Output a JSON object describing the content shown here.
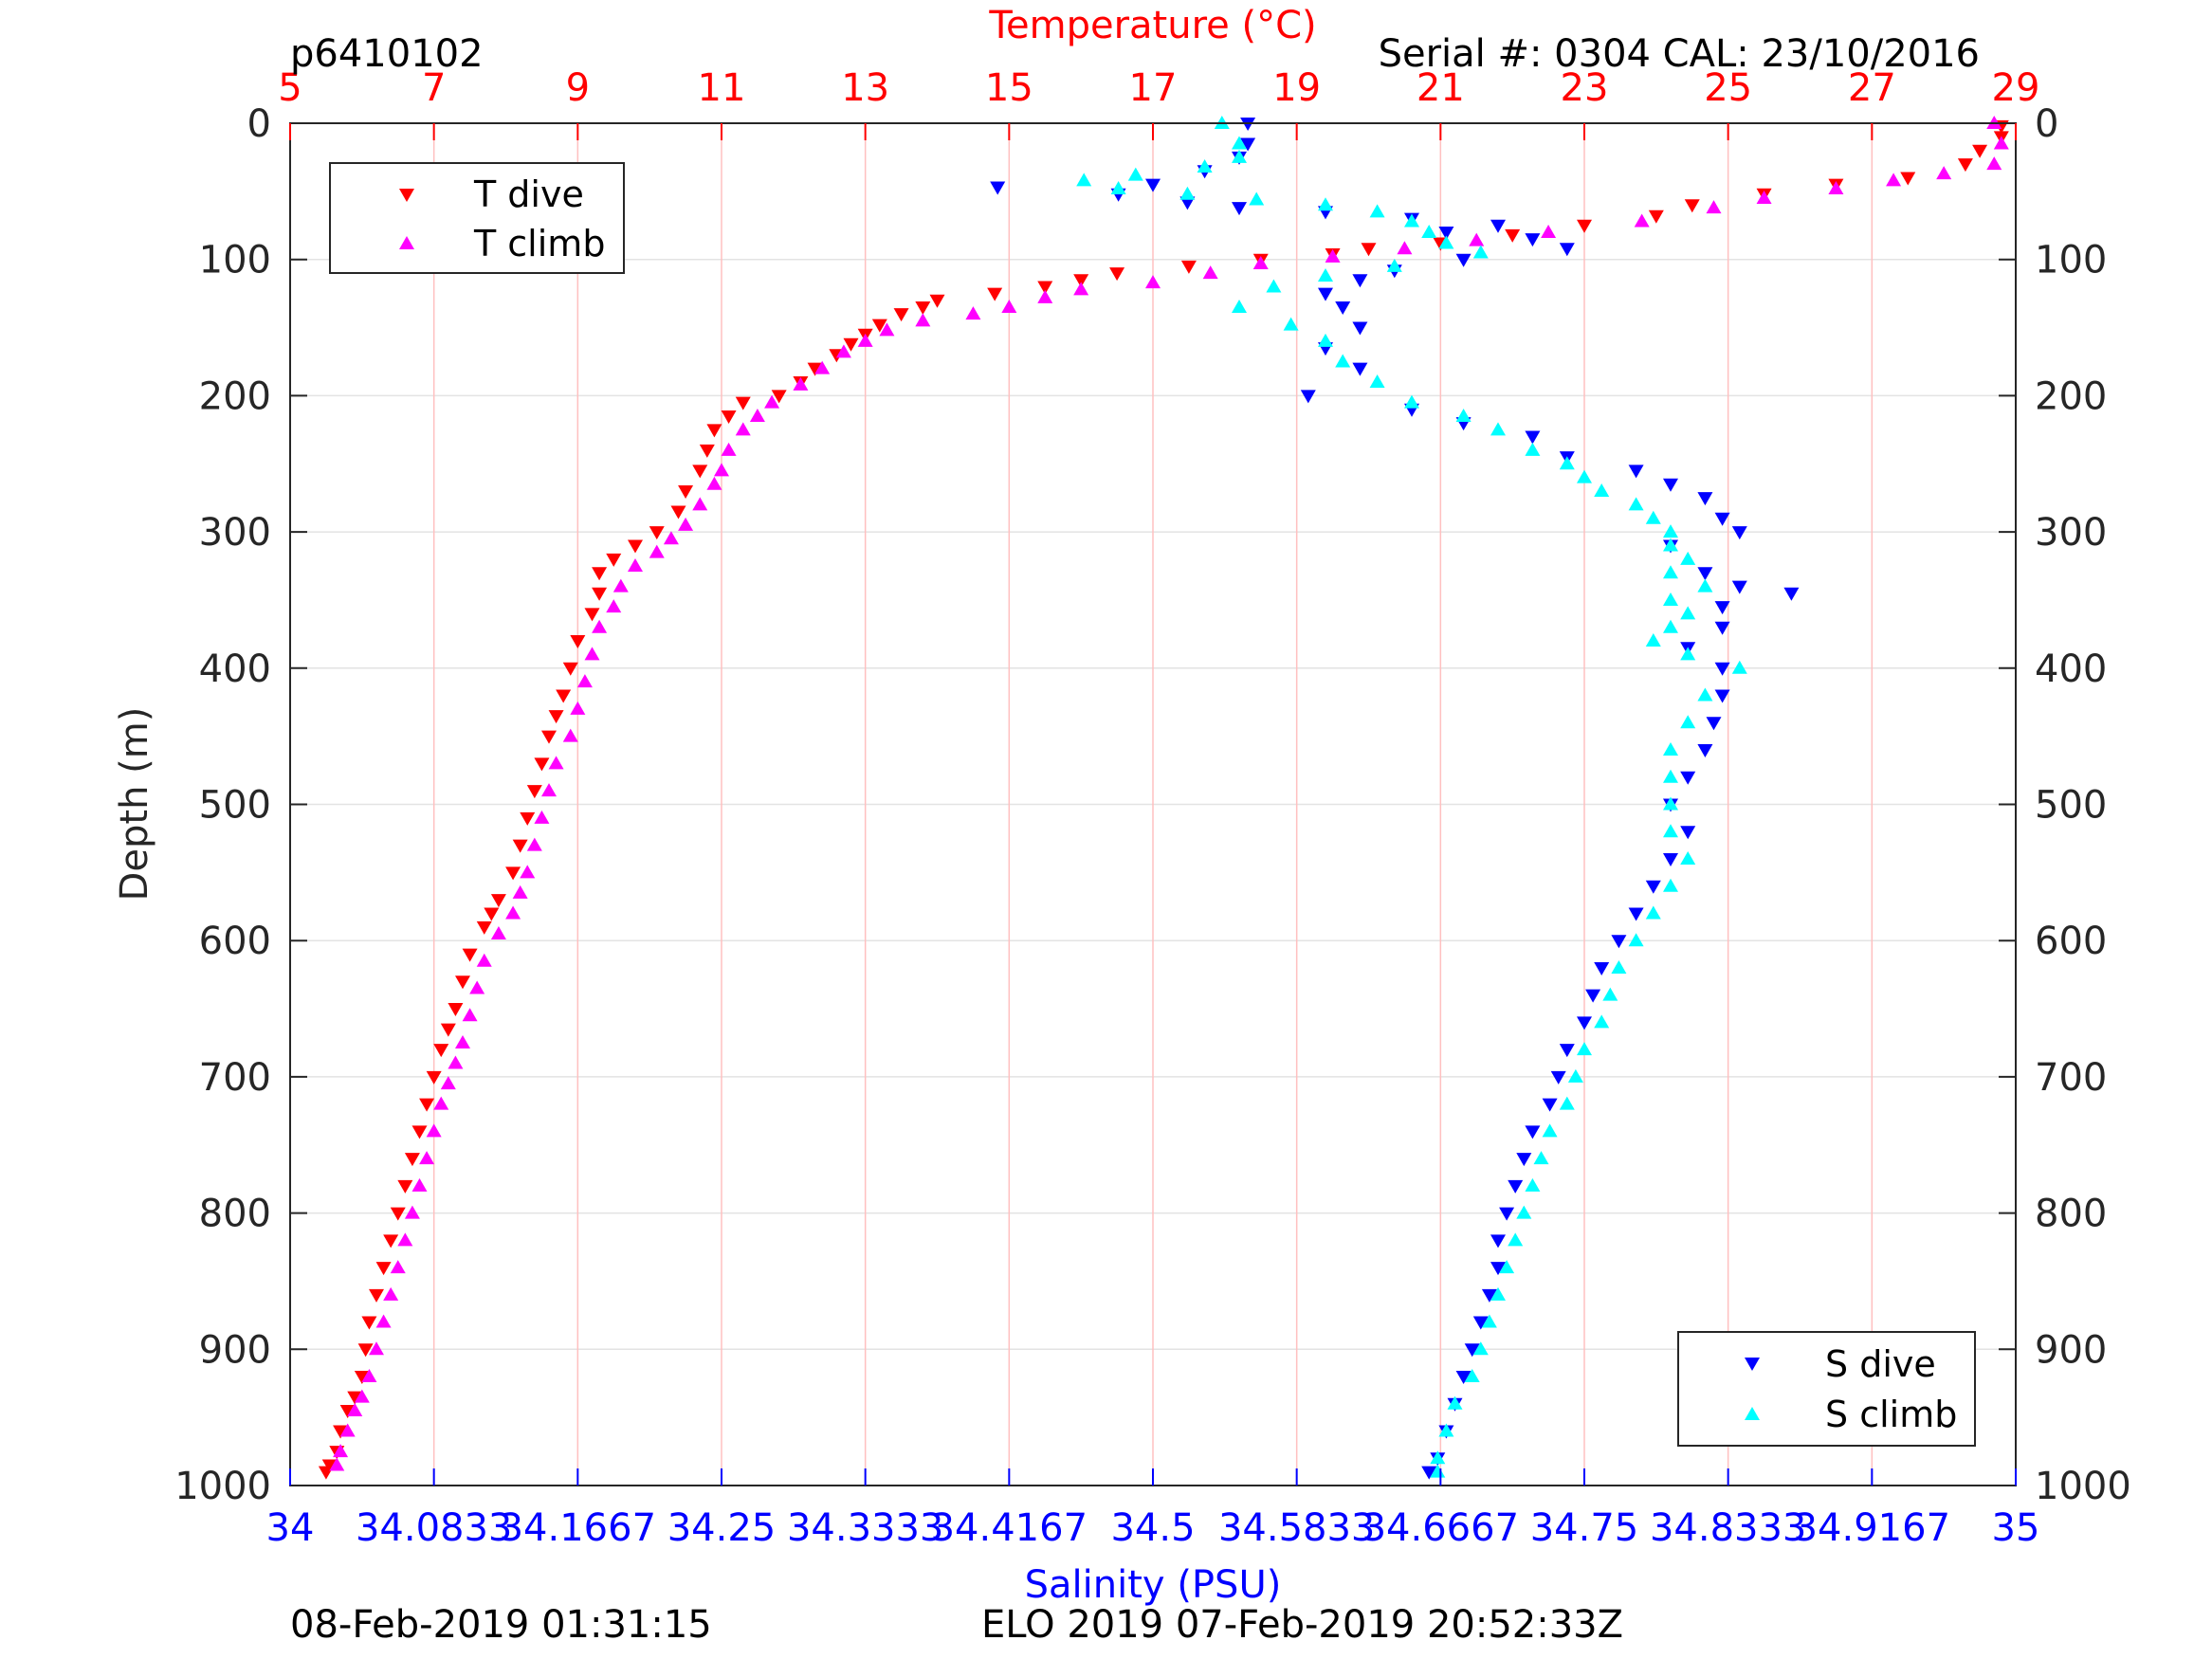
{
  "page": {
    "profile_id": "p6410102",
    "serial_cal": "Serial #: 0304  CAL: 23/10/2016",
    "footer_left": "08-Feb-2019 01:31:15",
    "footer_center": "ELO 2019 07-Feb-2019 20:52:33Z"
  },
  "colors": {
    "temperature_axis": "#ff0000",
    "salinity_axis": "#0000ff",
    "t_dive": "#ff0000",
    "t_climb": "#ff00ff",
    "s_dive": "#0000ff",
    "s_climb": "#00ffff",
    "grid": "#ffc0c0"
  },
  "chart_data": {
    "type": "scatter",
    "ylabel": "Depth (m)",
    "ylim": [
      1000,
      0
    ],
    "yticks": [
      "0",
      "100",
      "200",
      "300",
      "400",
      "500",
      "600",
      "700",
      "800",
      "900",
      "1000"
    ],
    "temperature_axis": {
      "label": "Temperature (°C)",
      "position": "top",
      "lim": [
        5,
        29
      ],
      "ticks": [
        "5",
        "7",
        "9",
        "11",
        "13",
        "15",
        "17",
        "19",
        "21",
        "23",
        "25",
        "27",
        "29"
      ]
    },
    "salinity_axis": {
      "label": "Salinity (PSU)",
      "position": "bottom",
      "lim": [
        34,
        35
      ],
      "ticks": [
        "34",
        "34.0833",
        "34.1667",
        "34.25",
        "34.3333",
        "34.4167",
        "34.5",
        "34.5833",
        "34.6667",
        "34.75",
        "34.8333",
        "34.9167",
        "35"
      ]
    },
    "grid": "vertical",
    "legends": [
      {
        "placement": "top-left",
        "entries": [
          "T dive",
          "T climb"
        ]
      },
      {
        "placement": "bottom-right",
        "entries": [
          "S dive",
          "S climb"
        ]
      }
    ],
    "series": [
      {
        "name": "T dive",
        "axis": "temperature",
        "marker": "triangle-down",
        "points": [
          [
            28.8,
            2
          ],
          [
            28.8,
            10
          ],
          [
            28.5,
            20
          ],
          [
            28.3,
            30
          ],
          [
            27.5,
            40
          ],
          [
            26.5,
            45
          ],
          [
            25.5,
            52
          ],
          [
            24.5,
            60
          ],
          [
            24,
            68
          ],
          [
            23,
            75
          ],
          [
            22,
            82
          ],
          [
            21,
            88
          ],
          [
            20,
            92
          ],
          [
            19.5,
            96
          ],
          [
            18.5,
            100
          ],
          [
            17.5,
            105
          ],
          [
            16.5,
            110
          ],
          [
            16,
            115
          ],
          [
            15.5,
            120
          ],
          [
            14.8,
            125
          ],
          [
            14,
            130
          ],
          [
            13.8,
            135
          ],
          [
            13.5,
            140
          ],
          [
            13.2,
            148
          ],
          [
            13,
            155
          ],
          [
            12.8,
            162
          ],
          [
            12.6,
            170
          ],
          [
            12.3,
            180
          ],
          [
            12.1,
            190
          ],
          [
            11.8,
            200
          ],
          [
            11.3,
            205
          ],
          [
            11.1,
            215
          ],
          [
            10.9,
            225
          ],
          [
            10.8,
            240
          ],
          [
            10.7,
            255
          ],
          [
            10.5,
            270
          ],
          [
            10.4,
            285
          ],
          [
            10.1,
            300
          ],
          [
            9.8,
            310
          ],
          [
            9.5,
            320
          ],
          [
            9.3,
            330
          ],
          [
            9.3,
            345
          ],
          [
            9.2,
            360
          ],
          [
            9,
            380
          ],
          [
            8.9,
            400
          ],
          [
            8.8,
            420
          ],
          [
            8.7,
            435
          ],
          [
            8.6,
            450
          ],
          [
            8.5,
            470
          ],
          [
            8.4,
            490
          ],
          [
            8.3,
            510
          ],
          [
            8.2,
            530
          ],
          [
            8.1,
            550
          ],
          [
            7.9,
            570
          ],
          [
            7.8,
            580
          ],
          [
            7.7,
            590
          ],
          [
            7.5,
            610
          ],
          [
            7.4,
            630
          ],
          [
            7.3,
            650
          ],
          [
            7.2,
            665
          ],
          [
            7.1,
            680
          ],
          [
            7,
            700
          ],
          [
            6.9,
            720
          ],
          [
            6.8,
            740
          ],
          [
            6.7,
            760
          ],
          [
            6.6,
            780
          ],
          [
            6.5,
            800
          ],
          [
            6.4,
            820
          ],
          [
            6.3,
            840
          ],
          [
            6.2,
            860
          ],
          [
            6.1,
            880
          ],
          [
            6.05,
            900
          ],
          [
            6,
            920
          ],
          [
            5.9,
            935
          ],
          [
            5.8,
            945
          ],
          [
            5.7,
            960
          ],
          [
            5.65,
            975
          ],
          [
            5.55,
            985
          ],
          [
            5.5,
            990
          ]
        ]
      },
      {
        "name": "T climb",
        "axis": "temperature",
        "marker": "triangle-up",
        "points": [
          [
            28.7,
            0
          ],
          [
            28.8,
            15
          ],
          [
            28.7,
            30
          ],
          [
            28,
            37
          ],
          [
            27.3,
            42
          ],
          [
            26.5,
            48
          ],
          [
            25.5,
            55
          ],
          [
            24.8,
            62
          ],
          [
            23.8,
            72
          ],
          [
            22.5,
            80
          ],
          [
            21.5,
            86
          ],
          [
            20.5,
            92
          ],
          [
            19.5,
            98
          ],
          [
            18.5,
            103
          ],
          [
            17.8,
            110
          ],
          [
            17,
            117
          ],
          [
            16,
            122
          ],
          [
            15.5,
            128
          ],
          [
            15,
            135
          ],
          [
            14.5,
            140
          ],
          [
            13.8,
            145
          ],
          [
            13.3,
            152
          ],
          [
            13,
            160
          ],
          [
            12.7,
            168
          ],
          [
            12.4,
            180
          ],
          [
            12.1,
            192
          ],
          [
            11.7,
            205
          ],
          [
            11.5,
            215
          ],
          [
            11.3,
            225
          ],
          [
            11.1,
            240
          ],
          [
            11,
            255
          ],
          [
            10.9,
            265
          ],
          [
            10.7,
            280
          ],
          [
            10.5,
            295
          ],
          [
            10.3,
            305
          ],
          [
            10.1,
            315
          ],
          [
            9.8,
            325
          ],
          [
            9.6,
            340
          ],
          [
            9.5,
            355
          ],
          [
            9.3,
            370
          ],
          [
            9.2,
            390
          ],
          [
            9.1,
            410
          ],
          [
            9,
            430
          ],
          [
            8.9,
            450
          ],
          [
            8.7,
            470
          ],
          [
            8.6,
            490
          ],
          [
            8.5,
            510
          ],
          [
            8.4,
            530
          ],
          [
            8.3,
            550
          ],
          [
            8.2,
            565
          ],
          [
            8.1,
            580
          ],
          [
            7.9,
            595
          ],
          [
            7.7,
            615
          ],
          [
            7.6,
            635
          ],
          [
            7.5,
            655
          ],
          [
            7.4,
            675
          ],
          [
            7.3,
            690
          ],
          [
            7.2,
            705
          ],
          [
            7.1,
            720
          ],
          [
            7,
            740
          ],
          [
            6.9,
            760
          ],
          [
            6.8,
            780
          ],
          [
            6.7,
            800
          ],
          [
            6.6,
            820
          ],
          [
            6.5,
            840
          ],
          [
            6.4,
            860
          ],
          [
            6.3,
            880
          ],
          [
            6.2,
            900
          ],
          [
            6.1,
            920
          ],
          [
            6,
            935
          ],
          [
            5.9,
            945
          ],
          [
            5.8,
            960
          ],
          [
            5.7,
            975
          ],
          [
            5.65,
            985
          ]
        ]
      },
      {
        "name": "S dive",
        "axis": "salinity",
        "marker": "triangle-down",
        "points": [
          [
            34.555,
            0
          ],
          [
            34.555,
            15
          ],
          [
            34.55,
            25
          ],
          [
            34.53,
            35
          ],
          [
            34.5,
            45
          ],
          [
            34.41,
            47
          ],
          [
            34.48,
            52
          ],
          [
            34.52,
            58
          ],
          [
            34.55,
            62
          ],
          [
            34.6,
            65
          ],
          [
            34.65,
            70
          ],
          [
            34.7,
            75
          ],
          [
            34.67,
            80
          ],
          [
            34.72,
            85
          ],
          [
            34.74,
            92
          ],
          [
            34.68,
            100
          ],
          [
            34.64,
            108
          ],
          [
            34.62,
            115
          ],
          [
            34.6,
            125
          ],
          [
            34.61,
            135
          ],
          [
            34.62,
            150
          ],
          [
            34.6,
            165
          ],
          [
            34.62,
            180
          ],
          [
            34.59,
            200
          ],
          [
            34.65,
            210
          ],
          [
            34.68,
            220
          ],
          [
            34.72,
            230
          ],
          [
            34.74,
            245
          ],
          [
            34.78,
            255
          ],
          [
            34.8,
            265
          ],
          [
            34.82,
            275
          ],
          [
            34.83,
            290
          ],
          [
            34.84,
            300
          ],
          [
            34.8,
            310
          ],
          [
            34.82,
            330
          ],
          [
            34.84,
            340
          ],
          [
            34.87,
            345
          ],
          [
            34.83,
            355
          ],
          [
            34.83,
            370
          ],
          [
            34.81,
            385
          ],
          [
            34.83,
            400
          ],
          [
            34.83,
            420
          ],
          [
            34.825,
            440
          ],
          [
            34.82,
            460
          ],
          [
            34.81,
            480
          ],
          [
            34.8,
            500
          ],
          [
            34.81,
            520
          ],
          [
            34.8,
            540
          ],
          [
            34.79,
            560
          ],
          [
            34.78,
            580
          ],
          [
            34.77,
            600
          ],
          [
            34.76,
            620
          ],
          [
            34.755,
            640
          ],
          [
            34.75,
            660
          ],
          [
            34.74,
            680
          ],
          [
            34.735,
            700
          ],
          [
            34.73,
            720
          ],
          [
            34.72,
            740
          ],
          [
            34.715,
            760
          ],
          [
            34.71,
            780
          ],
          [
            34.705,
            800
          ],
          [
            34.7,
            820
          ],
          [
            34.7,
            840
          ],
          [
            34.695,
            860
          ],
          [
            34.69,
            880
          ],
          [
            34.685,
            900
          ],
          [
            34.68,
            920
          ],
          [
            34.675,
            940
          ],
          [
            34.67,
            960
          ],
          [
            34.665,
            980
          ],
          [
            34.66,
            990
          ]
        ]
      },
      {
        "name": "S climb",
        "axis": "salinity",
        "marker": "triangle-up",
        "points": [
          [
            34.54,
            0
          ],
          [
            34.55,
            15
          ],
          [
            34.55,
            25
          ],
          [
            34.53,
            32
          ],
          [
            34.49,
            38
          ],
          [
            34.46,
            42
          ],
          [
            34.48,
            48
          ],
          [
            34.52,
            52
          ],
          [
            34.56,
            56
          ],
          [
            34.6,
            60
          ],
          [
            34.63,
            65
          ],
          [
            34.65,
            72
          ],
          [
            34.66,
            80
          ],
          [
            34.67,
            88
          ],
          [
            34.69,
            95
          ],
          [
            34.64,
            105
          ],
          [
            34.6,
            112
          ],
          [
            34.57,
            120
          ],
          [
            34.55,
            135
          ],
          [
            34.58,
            148
          ],
          [
            34.6,
            160
          ],
          [
            34.61,
            175
          ],
          [
            34.63,
            190
          ],
          [
            34.65,
            205
          ],
          [
            34.68,
            215
          ],
          [
            34.7,
            225
          ],
          [
            34.72,
            240
          ],
          [
            34.74,
            250
          ],
          [
            34.75,
            260
          ],
          [
            34.76,
            270
          ],
          [
            34.78,
            280
          ],
          [
            34.79,
            290
          ],
          [
            34.8,
            300
          ],
          [
            34.8,
            310
          ],
          [
            34.81,
            320
          ],
          [
            34.8,
            330
          ],
          [
            34.82,
            340
          ],
          [
            34.8,
            350
          ],
          [
            34.81,
            360
          ],
          [
            34.8,
            370
          ],
          [
            34.79,
            380
          ],
          [
            34.81,
            390
          ],
          [
            34.84,
            400
          ],
          [
            34.82,
            420
          ],
          [
            34.81,
            440
          ],
          [
            34.8,
            460
          ],
          [
            34.8,
            480
          ],
          [
            34.8,
            500
          ],
          [
            34.8,
            520
          ],
          [
            34.81,
            540
          ],
          [
            34.8,
            560
          ],
          [
            34.79,
            580
          ],
          [
            34.78,
            600
          ],
          [
            34.77,
            620
          ],
          [
            34.765,
            640
          ],
          [
            34.76,
            660
          ],
          [
            34.75,
            680
          ],
          [
            34.745,
            700
          ],
          [
            34.74,
            720
          ],
          [
            34.73,
            740
          ],
          [
            34.725,
            760
          ],
          [
            34.72,
            780
          ],
          [
            34.715,
            800
          ],
          [
            34.71,
            820
          ],
          [
            34.705,
            840
          ],
          [
            34.7,
            860
          ],
          [
            34.695,
            880
          ],
          [
            34.69,
            900
          ],
          [
            34.685,
            920
          ],
          [
            34.675,
            940
          ],
          [
            34.67,
            960
          ],
          [
            34.665,
            980
          ],
          [
            34.665,
            990
          ]
        ]
      }
    ]
  }
}
